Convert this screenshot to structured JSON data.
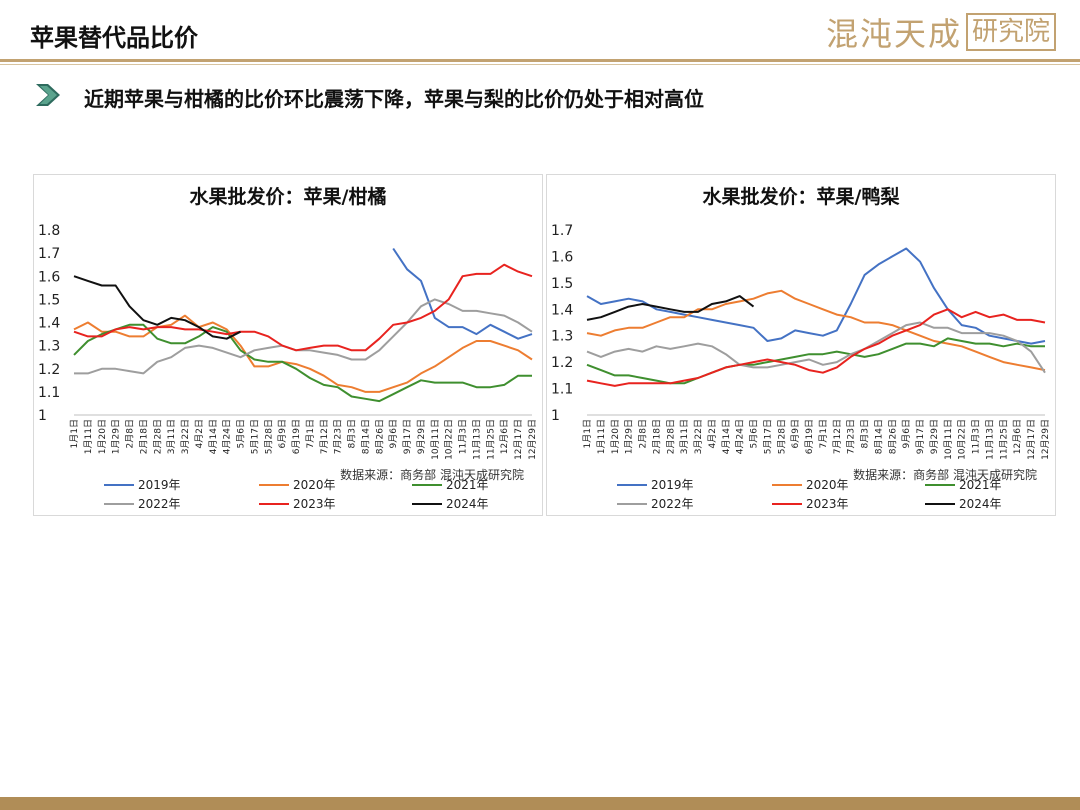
{
  "page": {
    "title": "苹果替代品比价",
    "logo_text": "混沌天成",
    "logo_box": "研究院",
    "subtitle": "近期苹果与柑橘的比价环比震荡下降，苹果与梨的比价仍处于相对高位"
  },
  "colors": {
    "accent": "#c2a271",
    "footer": "#b08d57",
    "2019年": "#4472c4",
    "2020年": "#ed7d31",
    "2021年": "#3f8f2f",
    "2022年": "#9e9e9e",
    "2023年": "#e8231f",
    "2024年": "#111111"
  },
  "chart_data": [
    {
      "type": "line",
      "title": "水果批发价：苹果/柑橘",
      "source": "数据来源：商务部  混沌天成研究院",
      "x": [
        "1月1日",
        "1月11日",
        "1月20日",
        "1月29日",
        "2月8日",
        "2月18日",
        "2月28日",
        "3月11日",
        "3月22日",
        "4月2日",
        "4月14日",
        "4月24日",
        "5月6日",
        "5月17日",
        "5月28日",
        "6月9日",
        "6月19日",
        "7月1日",
        "7月12日",
        "7月23日",
        "8月3日",
        "8月14日",
        "8月26日",
        "9月6日",
        "9月17日",
        "9月29日",
        "10月11日",
        "10月22日",
        "11月3日",
        "11月13日",
        "11月25日",
        "12月6日",
        "12月17日",
        "12月29日"
      ],
      "ylim": [
        1,
        1.8
      ],
      "yticks": [
        "1",
        "1.1",
        "1.2",
        "1.3",
        "1.4",
        "1.5",
        "1.6",
        "1.7",
        "1.8"
      ],
      "legend": "bottom",
      "series": [
        {
          "name": "2019年",
          "values": [
            null,
            null,
            null,
            null,
            null,
            null,
            null,
            null,
            null,
            null,
            null,
            null,
            null,
            null,
            null,
            null,
            null,
            null,
            null,
            null,
            null,
            null,
            null,
            1.72,
            1.63,
            1.58,
            1.42,
            1.38,
            1.38,
            1.35,
            1.39,
            1.36,
            1.33,
            1.35
          ]
        },
        {
          "name": "2020年",
          "values": [
            1.37,
            1.4,
            1.36,
            1.36,
            1.34,
            1.34,
            1.38,
            1.39,
            1.43,
            1.38,
            1.4,
            1.37,
            1.3,
            1.21,
            1.21,
            1.23,
            1.22,
            1.2,
            1.17,
            1.13,
            1.12,
            1.1,
            1.1,
            1.12,
            1.14,
            1.18,
            1.21,
            1.25,
            1.29,
            1.32,
            1.32,
            1.3,
            1.28,
            1.24
          ]
        },
        {
          "name": "2021年",
          "values": [
            1.26,
            1.32,
            1.35,
            1.37,
            1.39,
            1.39,
            1.33,
            1.31,
            1.31,
            1.34,
            1.38,
            1.36,
            1.28,
            1.24,
            1.23,
            1.23,
            1.2,
            1.16,
            1.13,
            1.12,
            1.08,
            1.07,
            1.06,
            1.09,
            1.12,
            1.15,
            1.14,
            1.14,
            1.14,
            1.12,
            1.12,
            1.13,
            1.17,
            1.17
          ]
        },
        {
          "name": "2022年",
          "values": [
            1.18,
            1.18,
            1.2,
            1.2,
            1.19,
            1.18,
            1.23,
            1.25,
            1.29,
            1.3,
            1.29,
            1.27,
            1.25,
            1.28,
            1.29,
            1.3,
            1.28,
            1.28,
            1.27,
            1.26,
            1.24,
            1.24,
            1.28,
            1.34,
            1.4,
            1.47,
            1.5,
            1.48,
            1.45,
            1.45,
            1.44,
            1.43,
            1.4,
            1.36
          ]
        },
        {
          "name": "2023年",
          "values": [
            1.36,
            1.34,
            1.34,
            1.37,
            1.38,
            1.37,
            1.38,
            1.38,
            1.37,
            1.37,
            1.36,
            1.35,
            1.36,
            1.36,
            1.34,
            1.3,
            1.28,
            1.29,
            1.3,
            1.3,
            1.28,
            1.28,
            1.33,
            1.39,
            1.4,
            1.42,
            1.45,
            1.5,
            1.6,
            1.61,
            1.61,
            1.65,
            1.62,
            1.6
          ]
        },
        {
          "name": "2024年",
          "values": [
            1.6,
            1.58,
            1.56,
            1.56,
            1.47,
            1.41,
            1.39,
            1.42,
            1.41,
            1.38,
            1.34,
            1.33,
            1.36,
            null,
            null,
            null,
            null,
            null,
            null,
            null,
            null,
            null,
            null,
            null,
            null,
            null,
            null,
            null,
            null,
            null,
            null,
            null,
            null,
            null
          ]
        }
      ]
    },
    {
      "type": "line",
      "title": "水果批发价：苹果/鸭梨",
      "source": "数据来源：商务部  混沌天成研究院",
      "x": [
        "1月1日",
        "1月11日",
        "1月20日",
        "1月29日",
        "2月8日",
        "2月18日",
        "2月28日",
        "3月11日",
        "3月22日",
        "4月2日",
        "4月14日",
        "4月24日",
        "5月6日",
        "5月17日",
        "5月28日",
        "6月9日",
        "6月19日",
        "7月1日",
        "7月12日",
        "7月23日",
        "8月3日",
        "8月14日",
        "8月26日",
        "9月6日",
        "9月17日",
        "9月29日",
        "10月11日",
        "10月22日",
        "11月3日",
        "11月13日",
        "11月25日",
        "12月6日",
        "12月17日",
        "12月29日"
      ],
      "ylim": [
        1,
        1.7
      ],
      "yticks": [
        "1",
        "1.1",
        "1.2",
        "1.3",
        "1.4",
        "1.5",
        "1.6",
        "1.7"
      ],
      "legend": "bottom",
      "series": [
        {
          "name": "2019年",
          "values": [
            1.45,
            1.42,
            1.43,
            1.44,
            1.43,
            1.4,
            1.39,
            1.38,
            1.37,
            1.36,
            1.35,
            1.34,
            1.33,
            1.28,
            1.29,
            1.32,
            1.31,
            1.3,
            1.32,
            1.42,
            1.53,
            1.57,
            1.6,
            1.63,
            1.58,
            1.48,
            1.4,
            1.34,
            1.33,
            1.3,
            1.29,
            1.28,
            1.27,
            1.28
          ]
        },
        {
          "name": "2020年",
          "values": [
            1.31,
            1.3,
            1.32,
            1.33,
            1.33,
            1.35,
            1.37,
            1.37,
            1.4,
            1.4,
            1.42,
            1.43,
            1.44,
            1.46,
            1.47,
            1.44,
            1.42,
            1.4,
            1.38,
            1.37,
            1.35,
            1.35,
            1.34,
            1.32,
            1.3,
            1.28,
            1.27,
            1.26,
            1.24,
            1.22,
            1.2,
            1.19,
            1.18,
            1.17
          ]
        },
        {
          "name": "2021年",
          "values": [
            1.19,
            1.17,
            1.15,
            1.15,
            1.14,
            1.13,
            1.12,
            1.12,
            1.14,
            1.16,
            1.18,
            1.19,
            1.19,
            1.2,
            1.21,
            1.22,
            1.23,
            1.23,
            1.24,
            1.23,
            1.22,
            1.23,
            1.25,
            1.27,
            1.27,
            1.26,
            1.29,
            1.28,
            1.27,
            1.27,
            1.26,
            1.27,
            1.26,
            1.26
          ]
        },
        {
          "name": "2022年",
          "values": [
            1.24,
            1.22,
            1.24,
            1.25,
            1.24,
            1.26,
            1.25,
            1.26,
            1.27,
            1.26,
            1.23,
            1.19,
            1.18,
            1.18,
            1.19,
            1.2,
            1.21,
            1.19,
            1.2,
            1.23,
            1.25,
            1.28,
            1.31,
            1.34,
            1.35,
            1.33,
            1.33,
            1.31,
            1.31,
            1.31,
            1.3,
            1.28,
            1.24,
            1.16
          ]
        },
        {
          "name": "2023年",
          "values": [
            1.13,
            1.12,
            1.11,
            1.12,
            1.12,
            1.12,
            1.12,
            1.13,
            1.14,
            1.16,
            1.18,
            1.19,
            1.2,
            1.21,
            1.2,
            1.19,
            1.17,
            1.16,
            1.18,
            1.22,
            1.25,
            1.27,
            1.3,
            1.32,
            1.34,
            1.38,
            1.4,
            1.37,
            1.39,
            1.37,
            1.38,
            1.36,
            1.36,
            1.35
          ]
        },
        {
          "name": "2024年",
          "values": [
            1.36,
            1.37,
            1.39,
            1.41,
            1.42,
            1.41,
            1.4,
            1.39,
            1.39,
            1.42,
            1.43,
            1.45,
            1.41,
            null,
            null,
            null,
            null,
            null,
            null,
            null,
            null,
            null,
            null,
            null,
            null,
            null,
            null,
            null,
            null,
            null,
            null,
            null,
            null,
            null
          ]
        }
      ]
    }
  ]
}
